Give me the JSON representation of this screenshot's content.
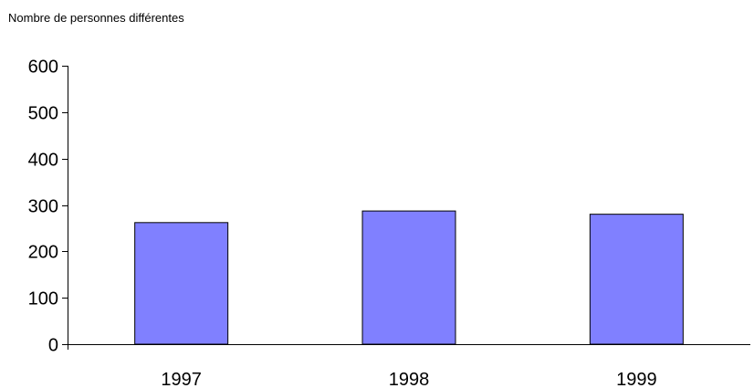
{
  "chart_data": {
    "type": "bar",
    "title": "",
    "ylabel": "Nombre de personnes différentes",
    "xlabel": "",
    "categories": [
      "1997",
      "1998",
      "1999"
    ],
    "values": [
      262,
      287,
      280
    ],
    "ylim": [
      0,
      600
    ],
    "yticks": [
      0,
      100,
      200,
      300,
      400,
      500,
      600
    ],
    "grid": false,
    "legend": "none",
    "bar_color": "#8080ff",
    "bar_edge_color": "#000000"
  }
}
